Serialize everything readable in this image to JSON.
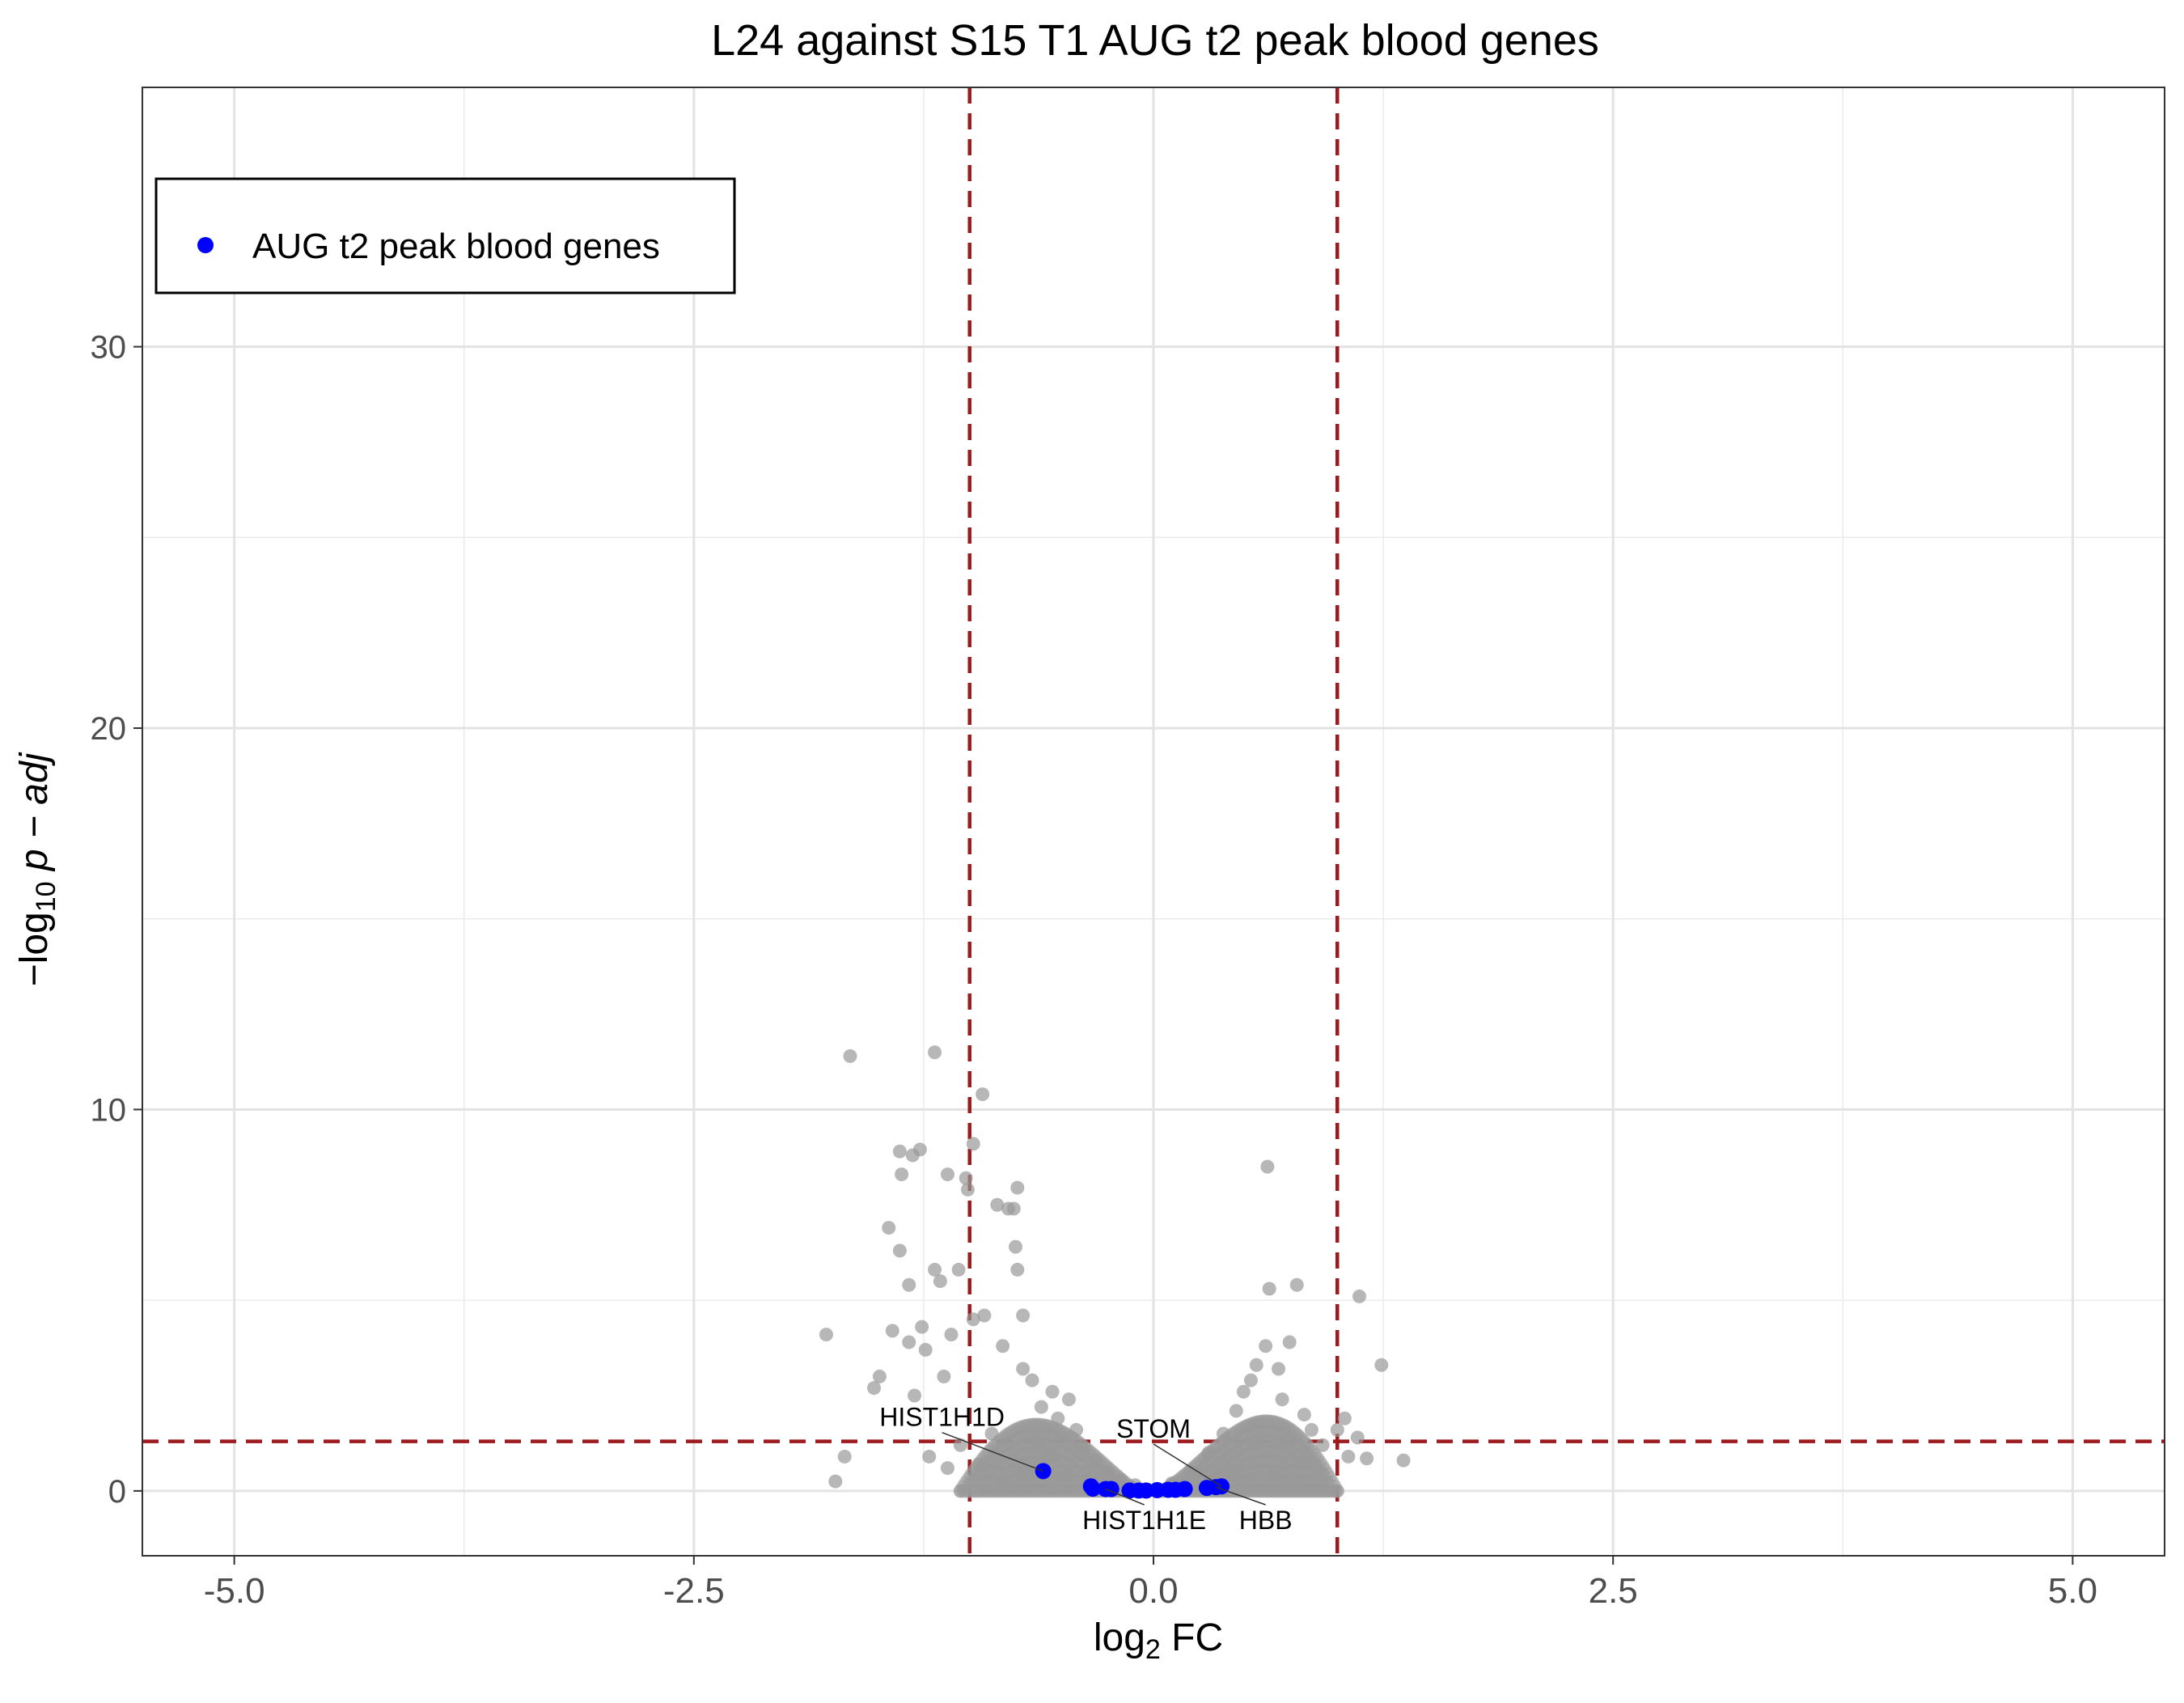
{
  "chart_data": {
    "type": "scatter",
    "title": "L24 against S15 T1 AUG t2 peak blood genes",
    "xlabel": {
      "main": "log",
      "sub": "2",
      "tail": " FC"
    },
    "ylabel": {
      "prefix": "−log",
      "sub": "10",
      "tail": " p − adj"
    },
    "xlim": [
      -5.5,
      5.5
    ],
    "ylim": [
      -1.7,
      36.8
    ],
    "x_ticks": [
      -5.0,
      -2.5,
      0.0,
      2.5,
      5.0
    ],
    "x_tick_labels": [
      "-5.0",
      "-2.5",
      "0.0",
      "2.5",
      "5.0"
    ],
    "y_ticks": [
      0,
      10,
      20,
      30
    ],
    "y_tick_labels": [
      "0",
      "10",
      "20",
      "30"
    ],
    "grid": true,
    "thresholds": {
      "log2fc": [
        -1,
        1
      ],
      "neg_log10_padj": 1.3,
      "color": "#9b1b1f"
    },
    "legend": {
      "position": "top-left",
      "entries": [
        {
          "label": "AUG t2 peak blood genes",
          "color": "#0000ff"
        }
      ]
    },
    "background_color": "#999999",
    "highlight_color": "#0000ff",
    "series": [
      {
        "name": "",
        "role": "background",
        "points": [
          [
            -1.78,
            4.1
          ],
          [
            -1.73,
            0.25
          ],
          [
            -1.68,
            0.9
          ],
          [
            -1.65,
            11.4
          ],
          [
            -1.52,
            2.7
          ],
          [
            -1.49,
            3.0
          ],
          [
            -1.44,
            6.9
          ],
          [
            -1.42,
            4.2
          ],
          [
            -1.38,
            6.3
          ],
          [
            -1.38,
            8.9
          ],
          [
            -1.37,
            8.3
          ],
          [
            -1.33,
            5.4
          ],
          [
            -1.33,
            3.9
          ],
          [
            -1.31,
            8.8
          ],
          [
            -1.3,
            2.5
          ],
          [
            -1.27,
            8.95
          ],
          [
            -1.26,
            4.3
          ],
          [
            -1.24,
            3.7
          ],
          [
            -1.19,
            11.5
          ],
          [
            -1.19,
            5.8
          ],
          [
            -1.16,
            5.5
          ],
          [
            -1.14,
            3.0
          ],
          [
            -1.12,
            8.3
          ],
          [
            -1.1,
            4.1
          ],
          [
            -1.06,
            5.8
          ],
          [
            -1.02,
            8.2
          ],
          [
            -1.01,
            7.9
          ],
          [
            -0.98,
            4.5
          ],
          [
            -0.98,
            9.1
          ],
          [
            -0.93,
            10.4
          ],
          [
            -0.92,
            4.6
          ],
          [
            -0.85,
            7.5
          ],
          [
            -0.79,
            7.4
          ],
          [
            -0.74,
            7.95
          ],
          [
            -0.76,
            7.4
          ],
          [
            -0.75,
            6.4
          ],
          [
            -0.74,
            5.8
          ],
          [
            -0.71,
            4.6
          ],
          [
            -0.82,
            3.8
          ],
          [
            -0.71,
            3.2
          ],
          [
            -0.66,
            2.9
          ],
          [
            -0.61,
            2.2
          ],
          [
            -0.55,
            2.6
          ],
          [
            -0.52,
            1.9
          ],
          [
            -0.46,
            2.4
          ],
          [
            -0.42,
            1.6
          ],
          [
            -0.38,
            1.1
          ],
          [
            -0.31,
            0.8
          ],
          [
            -0.25,
            0.5
          ],
          [
            -0.18,
            0.3
          ],
          [
            -0.1,
            0.15
          ],
          [
            0.1,
            0.2
          ],
          [
            0.2,
            0.5
          ],
          [
            0.3,
            1.0
          ],
          [
            0.38,
            1.5
          ],
          [
            0.45,
            2.1
          ],
          [
            0.49,
            2.6
          ],
          [
            0.53,
            2.9
          ],
          [
            0.56,
            3.3
          ],
          [
            0.61,
            3.8
          ],
          [
            0.62,
            8.5
          ],
          [
            0.63,
            5.3
          ],
          [
            0.68,
            3.2
          ],
          [
            0.7,
            2.4
          ],
          [
            0.74,
            3.9
          ],
          [
            0.78,
            5.4
          ],
          [
            0.82,
            2.0
          ],
          [
            0.86,
            1.6
          ],
          [
            0.92,
            1.2
          ],
          [
            1.0,
            1.6
          ],
          [
            1.04,
            1.9
          ],
          [
            1.06,
            0.9
          ],
          [
            1.11,
            1.4
          ],
          [
            1.12,
            5.1
          ],
          [
            1.16,
            0.85
          ],
          [
            1.24,
            3.3
          ],
          [
            1.36,
            0.8
          ],
          [
            -1.05,
            1.2
          ],
          [
            -1.12,
            0.6
          ],
          [
            -1.22,
            0.9
          ],
          [
            -0.95,
            0.7
          ],
          [
            -0.88,
            1.5
          ],
          [
            -0.62,
            1.2
          ],
          [
            -0.58,
            0.9
          ],
          [
            -0.48,
            0.4
          ],
          [
            -0.35,
            0.2
          ],
          [
            0.35,
            0.35
          ],
          [
            0.55,
            1.2
          ],
          [
            0.72,
            1.3
          ],
          [
            0.8,
            0.7
          ],
          [
            0.66,
            0.4
          ],
          [
            -0.7,
            0.5
          ],
          [
            -0.82,
            0.3
          ],
          [
            0.44,
            0.4
          ]
        ]
      },
      {
        "name": "AUG t2 peak blood genes",
        "role": "highlight",
        "points": [
          [
            -0.6,
            0.52
          ],
          [
            -0.34,
            0.12
          ],
          [
            -0.33,
            0.06
          ],
          [
            -0.26,
            0.05
          ],
          [
            -0.23,
            0.05
          ],
          [
            -0.13,
            0.01
          ],
          [
            -0.08,
            0.01
          ],
          [
            -0.04,
            0.01
          ],
          [
            0.02,
            0.02
          ],
          [
            0.08,
            0.03
          ],
          [
            0.12,
            0.03
          ],
          [
            0.17,
            0.05
          ],
          [
            0.29,
            0.08
          ],
          [
            0.34,
            0.1
          ],
          [
            0.37,
            0.12
          ]
        ]
      }
    ],
    "annotations": [
      {
        "label": "HIST1H1D",
        "x": -0.6,
        "y": 0.52,
        "label_x": -1.15,
        "label_y": 1.7
      },
      {
        "label": "STOM",
        "x": 0.37,
        "y": 0.12,
        "label_x": 0.0,
        "label_y": 1.4
      },
      {
        "label": "HIST1H1E",
        "x": -0.26,
        "y": 0.05,
        "label_x": -0.05,
        "label_y": -1.0
      },
      {
        "label": "HBB",
        "x": 0.34,
        "y": 0.1,
        "label_x": 0.61,
        "label_y": -1.0
      }
    ]
  }
}
